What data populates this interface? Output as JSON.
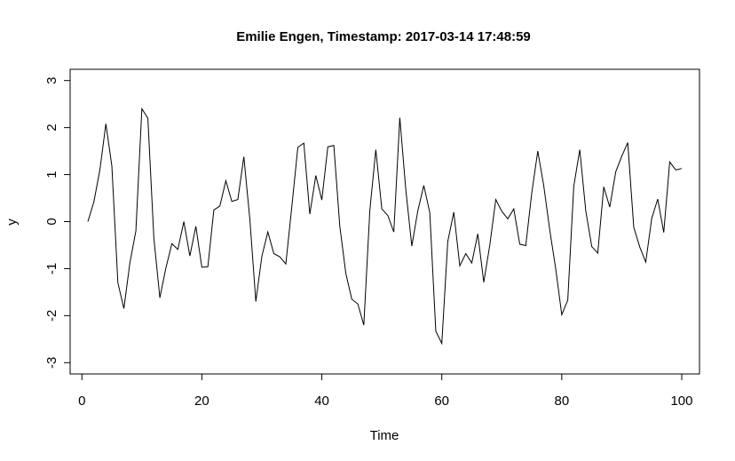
{
  "chart_data": {
    "type": "line",
    "title": "Emilie Engen, Timestamp: 2017-03-14 17:48:59",
    "xlabel": "Time",
    "ylabel": "y",
    "xlim": [
      -1.96,
      102.96
    ],
    "ylim": [
      -3.24,
      3.24
    ],
    "xticks": [
      0,
      20,
      40,
      60,
      80,
      100
    ],
    "yticks": [
      -3,
      -2,
      -1,
      0,
      1,
      2,
      3
    ],
    "xtick_labels": [
      "0",
      "20",
      "40",
      "60",
      "80",
      "100"
    ],
    "ytick_labels": [
      "-3",
      "-2",
      "-1",
      "0",
      "1",
      "2",
      "3"
    ],
    "grid": false,
    "series": [
      {
        "x": [
          1,
          2,
          3,
          4,
          5,
          6,
          7,
          8,
          9,
          10,
          11,
          12,
          13,
          14,
          15,
          16,
          17,
          18,
          19,
          20,
          21,
          22,
          23,
          24,
          25,
          26,
          27,
          28,
          29,
          30,
          31,
          32,
          33,
          34,
          35,
          36,
          37,
          38,
          39,
          40,
          41,
          42,
          43,
          44,
          45,
          46,
          47,
          48,
          49,
          50,
          51,
          52,
          53,
          54,
          55,
          56,
          57,
          58,
          59,
          60,
          61,
          62,
          63,
          64,
          65,
          66,
          67,
          68,
          69,
          70,
          71,
          72,
          73,
          74,
          75,
          76,
          77,
          78,
          79,
          80,
          81,
          82,
          83,
          84,
          85,
          86,
          87,
          88,
          89,
          90,
          91,
          92,
          93,
          94,
          95,
          96,
          97,
          98,
          99,
          100
        ],
        "values": [
          0.0,
          0.42,
          1.1,
          2.08,
          1.18,
          -1.3,
          -1.85,
          -0.88,
          -0.2,
          2.4,
          2.2,
          -0.35,
          -1.62,
          -0.99,
          -0.47,
          -0.59,
          0.0,
          -0.73,
          -0.1,
          -0.97,
          -0.96,
          0.25,
          0.33,
          0.87,
          0.43,
          0.47,
          1.38,
          0.05,
          -1.7,
          -0.74,
          -0.22,
          -0.68,
          -0.75,
          -0.9,
          0.32,
          1.58,
          1.67,
          0.16,
          0.98,
          0.46,
          1.59,
          1.62,
          -0.1,
          -1.1,
          -1.65,
          -1.75,
          -2.2,
          0.23,
          1.53,
          0.27,
          0.13,
          -0.22,
          2.21,
          0.68,
          -0.52,
          0.23,
          0.77,
          0.19,
          -2.33,
          -2.59,
          -0.42,
          0.2,
          -0.94,
          -0.68,
          -0.88,
          -0.26,
          -1.29,
          -0.5,
          0.47,
          0.22,
          0.06,
          0.27,
          -0.48,
          -0.51,
          0.61,
          1.5,
          0.76,
          -0.18,
          -1.01,
          -1.98,
          -1.67,
          0.75,
          1.53,
          0.23,
          -0.53,
          -0.67,
          0.74,
          0.31,
          1.06,
          1.39,
          1.68,
          -0.12,
          -0.54,
          -0.86,
          0.07,
          0.48,
          -0.23,
          1.27,
          1.1,
          1.13
        ]
      }
    ]
  }
}
